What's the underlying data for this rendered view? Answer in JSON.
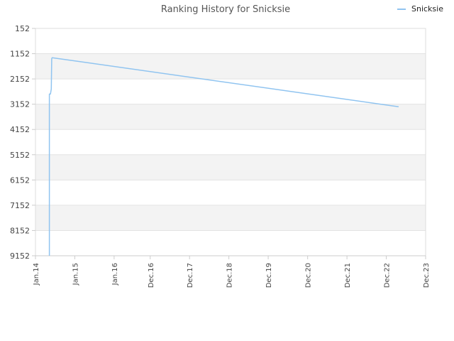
{
  "chart_data": {
    "type": "line",
    "title": "Ranking History for Snicksie",
    "xlabel": "",
    "ylabel": "",
    "y_inverted": true,
    "ylim": [
      152,
      9152
    ],
    "y_ticks": [
      "152",
      "1152",
      "2152",
      "3152",
      "4152",
      "5152",
      "6152",
      "7152",
      "8152",
      "9152"
    ],
    "y_tick_values": [
      152,
      1152,
      2152,
      3152,
      4152,
      5152,
      6152,
      7152,
      8152,
      9152
    ],
    "x_ticks": [
      "Jan.14",
      "Jan.15",
      "Jan.16",
      "Dec.16",
      "Dec.17",
      "Dec.18",
      "Dec.19",
      "Dec.20",
      "Dec.21",
      "Dec.22",
      "Dec.23"
    ],
    "x_tick_dates": [
      "2014-01-01",
      "2015-01-01",
      "2016-01-01",
      "2016-12-01",
      "2017-12-01",
      "2018-12-01",
      "2019-12-01",
      "2020-12-01",
      "2021-12-01",
      "2022-12-01",
      "2023-12-01"
    ],
    "xlim": [
      "2014-01-01",
      "2023-12-01"
    ],
    "grid": true,
    "legend_position": "top-right",
    "series": [
      {
        "name": "Snicksie",
        "color": "#90c4f0",
        "points": [
          {
            "date": "2014-05-10",
            "rank": 9152
          },
          {
            "date": "2014-05-10",
            "rank": 2752
          },
          {
            "date": "2014-05-20",
            "rank": 2752
          },
          {
            "date": "2014-05-28",
            "rank": 2552
          },
          {
            "date": "2014-06-01",
            "rank": 1352
          },
          {
            "date": "2014-06-05",
            "rank": 1312
          },
          {
            "date": "2023-03-25",
            "rank": 3252
          }
        ]
      }
    ]
  }
}
